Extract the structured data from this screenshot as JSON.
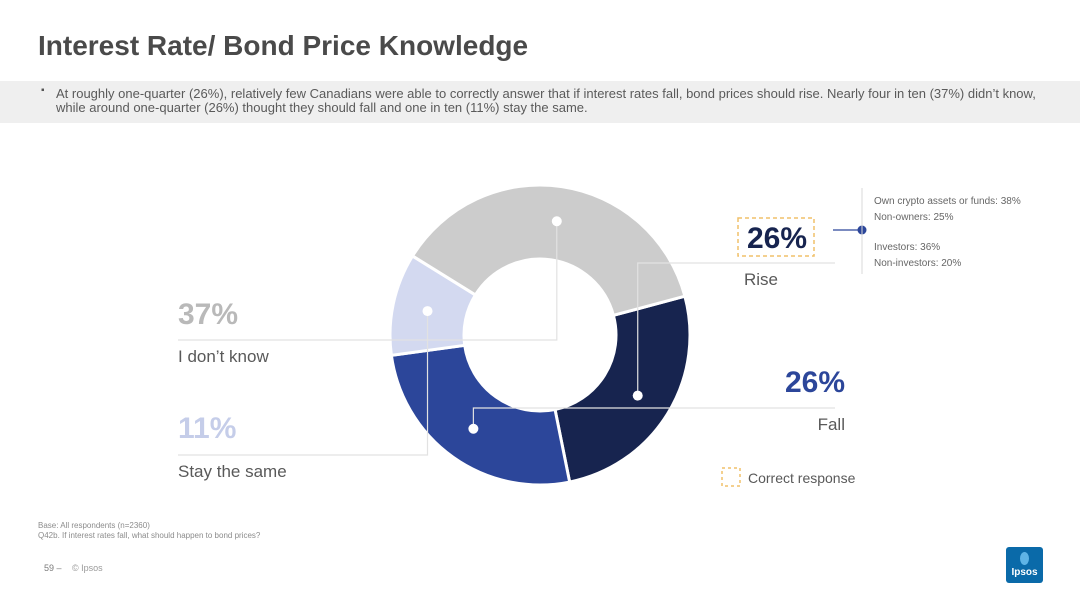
{
  "slide": {
    "title": "Interest Rate/ Bond Price Knowledge",
    "bullet_marker": "▪",
    "summary": "At roughly one-quarter (26%), relatively few Canadians were able to correctly answer that if interest rates fall, bond prices should rise. Nearly four in ten (37%) didn’t know, while around one-quarter (26%) thought they should fall and one in ten (11%) stay the same."
  },
  "chart_data": {
    "type": "pie",
    "subtype": "donut",
    "categories": [
      "Rise",
      "Fall",
      "Stay the same",
      "I don’t know"
    ],
    "values": [
      26,
      26,
      11,
      37
    ],
    "value_labels": [
      "26%",
      "26%",
      "11%",
      "37%"
    ],
    "colors": [
      "#17244f",
      "#2c469a",
      "#d3d9f0",
      "#cccccc"
    ],
    "label_colors": [
      "#17244f",
      "#2c469a",
      "#c5cde9",
      "#b9b9b9"
    ],
    "label_sides": [
      "right",
      "right",
      "left",
      "left"
    ],
    "start_angle_deg": -15,
    "correct_answer": "Rise",
    "legend": {
      "correct_response": "Correct response"
    },
    "annotation": {
      "group1": [
        "Own crypto assets or funds: 38%",
        "Non-owners: 25%"
      ],
      "group2": [
        "Investors: 36%",
        "Non-investors: 20%"
      ]
    }
  },
  "footer": {
    "base": "Base: All respondents (n=2360)",
    "question": "Q42b. If interest rates fall, what should happen to bond prices?",
    "page": "59 –",
    "copyright": "© Ipsos"
  },
  "logo": {
    "text": "Ipsos"
  }
}
